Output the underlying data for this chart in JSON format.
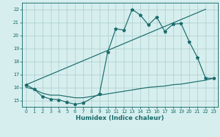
{
  "bg_color": "#d6eeee",
  "grid_color": "#b0d0d0",
  "line_color": "#1a6b6b",
  "xlabel": "Humidex (Indice chaleur)",
  "xlim": [
    -0.5,
    23.5
  ],
  "ylim": [
    14.5,
    22.5
  ],
  "yticks": [
    15,
    16,
    17,
    18,
    19,
    20,
    21,
    22
  ],
  "xticks": [
    0,
    1,
    2,
    3,
    4,
    5,
    6,
    7,
    8,
    9,
    10,
    11,
    12,
    13,
    14,
    15,
    16,
    17,
    18,
    19,
    20,
    21,
    22,
    23
  ],
  "series1_x": [
    0,
    1,
    2,
    3,
    4,
    5,
    6,
    7,
    9,
    10,
    11,
    12,
    13,
    14,
    15,
    16,
    17,
    18,
    19,
    20,
    21,
    22,
    23
  ],
  "series1_y": [
    16.2,
    15.85,
    15.3,
    15.1,
    15.05,
    14.85,
    14.7,
    14.8,
    15.5,
    18.7,
    20.5,
    20.4,
    22.0,
    21.55,
    20.8,
    21.4,
    20.3,
    20.85,
    20.9,
    19.5,
    18.3,
    16.7,
    16.7
  ],
  "series2_x": [
    0,
    22
  ],
  "series2_y": [
    16.2,
    22.0
  ],
  "series3_x": [
    0,
    1,
    2,
    3,
    4,
    5,
    6,
    7,
    8,
    9,
    10,
    11,
    12,
    13,
    14,
    15,
    16,
    17,
    18,
    19,
    20,
    21,
    22,
    23
  ],
  "series3_y": [
    16.0,
    15.85,
    15.55,
    15.4,
    15.4,
    15.3,
    15.2,
    15.2,
    15.3,
    15.4,
    15.5,
    15.6,
    15.7,
    15.8,
    15.9,
    16.0,
    16.05,
    16.1,
    16.2,
    16.25,
    16.35,
    16.45,
    16.55,
    16.7
  ],
  "title_fontsize": 6,
  "tick_fontsize": 5,
  "xlabel_fontsize": 6.5
}
